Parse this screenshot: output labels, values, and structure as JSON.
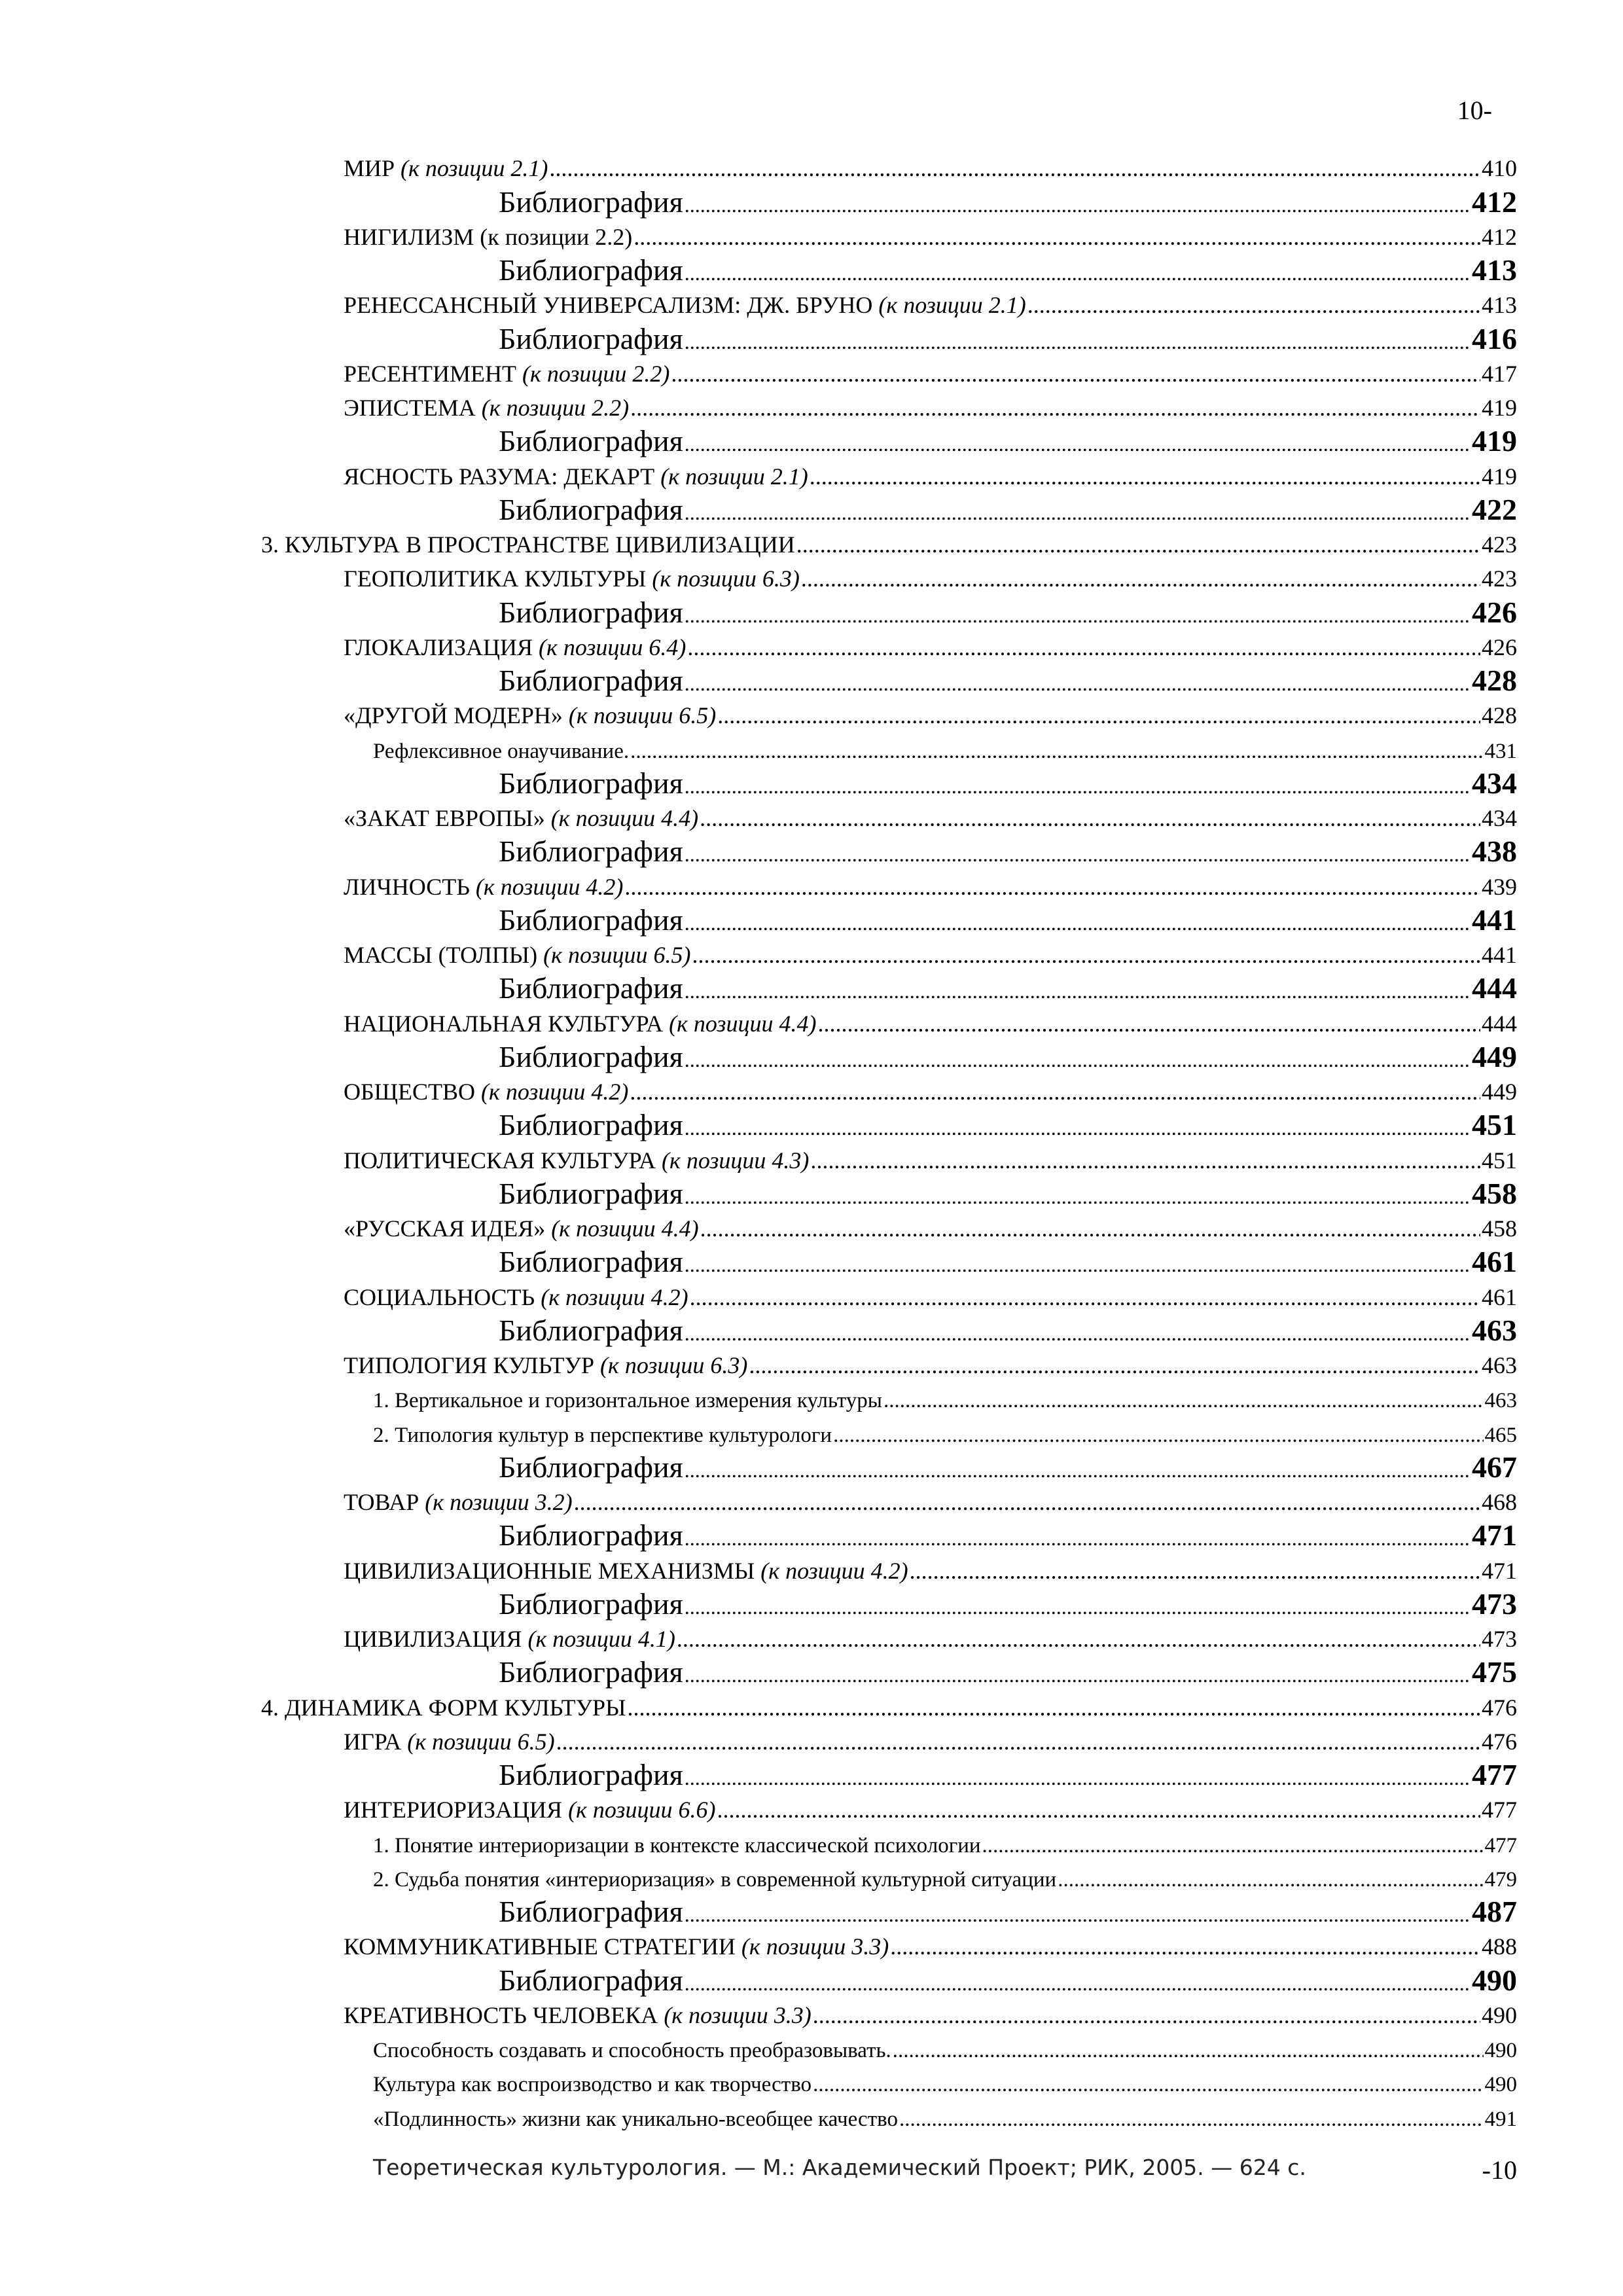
{
  "header": {
    "page_marker": "10-"
  },
  "toc": {
    "bib_label": "Библиография",
    "entries": [
      {
        "level": 1,
        "title": "МИР",
        "ref": "(к позиции 2.1)",
        "ref_italic": true,
        "page": "410"
      },
      {
        "level": "bib",
        "page": "412"
      },
      {
        "level": 1,
        "title": "НИГИЛИЗМ",
        "ref": "(к позиции 2.2)",
        "ref_italic": false,
        "page": "412"
      },
      {
        "level": "bib",
        "page": "413"
      },
      {
        "level": 1,
        "title": "РЕНЕССАНСНЫЙ УНИВЕРСАЛИЗМ: ДЖ. БРУНО",
        "ref": "(к позиции 2.1)",
        "ref_italic": true,
        "page": "413"
      },
      {
        "level": "bib",
        "page": "416"
      },
      {
        "level": 1,
        "title": "РЕСЕНТИМЕНТ",
        "ref": "(к позиции 2.2)",
        "ref_italic": true,
        "page": "417"
      },
      {
        "level": 1,
        "title": "ЭПИСТЕМА",
        "ref": "(к позиции 2.2)",
        "ref_italic": true,
        "page": "419"
      },
      {
        "level": "bib",
        "page": "419"
      },
      {
        "level": 1,
        "title": "ЯСНОСТЬ РАЗУМА: ДЕКАРТ",
        "ref": "(к позиции 2.1)",
        "ref_italic": true,
        "page": "419"
      },
      {
        "level": "bib",
        "page": "422"
      },
      {
        "level": 0,
        "title": "3. КУЛЬТУРА В ПРОСТРАНСТВЕ ЦИВИЛИЗАЦИИ",
        "page": "423"
      },
      {
        "level": 1,
        "title": "ГЕОПОЛИТИКА КУЛЬТУРЫ",
        "ref": "(к позиции 6.3)",
        "ref_italic": true,
        "page": "423"
      },
      {
        "level": "bib",
        "page": "426"
      },
      {
        "level": 1,
        "title": "ГЛОКАЛИЗАЦИЯ",
        "ref": "(к позиции 6.4)",
        "ref_italic": true,
        "page": "426"
      },
      {
        "level": "bib",
        "page": "428"
      },
      {
        "level": 1,
        "title": "«ДРУГОЙ МОДЕРН»",
        "ref": "(к позиции 6.5)",
        "ref_italic": true,
        "page": "428"
      },
      {
        "level": 2,
        "title": "Рефлексивное онаучивание.",
        "page": "431"
      },
      {
        "level": "bib",
        "page": "434"
      },
      {
        "level": 1,
        "title": "«ЗАКАТ ЕВРОПЫ»",
        "ref": "(к позиции 4.4)",
        "ref_italic": true,
        "page": "434"
      },
      {
        "level": "bib",
        "page": "438"
      },
      {
        "level": 1,
        "title": "ЛИЧНОСТЬ",
        "ref": "(к позиции 4.2)",
        "ref_italic": true,
        "page": "439"
      },
      {
        "level": "bib",
        "page": "441"
      },
      {
        "level": 1,
        "title": "МАССЫ (ТОЛПЫ)",
        "ref": "(к позиции 6.5)",
        "ref_italic": true,
        "page": "441"
      },
      {
        "level": "bib",
        "page": "444"
      },
      {
        "level": 1,
        "title": "НАЦИОНАЛЬНАЯ КУЛЬТУРА",
        "ref": "(к позиции 4.4)",
        "ref_italic": true,
        "page": "444"
      },
      {
        "level": "bib",
        "page": "449"
      },
      {
        "level": 1,
        "title": "ОБЩЕСТВО",
        "ref": "(к позиции 4.2)",
        "ref_italic": true,
        "page": "449"
      },
      {
        "level": "bib",
        "page": "451"
      },
      {
        "level": 1,
        "title": "ПОЛИТИЧЕСКАЯ КУЛЬТУРА",
        "ref": "(к позиции 4.3)",
        "ref_italic": true,
        "page": "451"
      },
      {
        "level": "bib",
        "page": "458"
      },
      {
        "level": 1,
        "title": "«РУССКАЯ ИДЕЯ»",
        "ref": "(к позиции 4.4)",
        "ref_italic": true,
        "page": "458"
      },
      {
        "level": "bib",
        "page": "461"
      },
      {
        "level": 1,
        "title": "СОЦИАЛЬНОСТЬ",
        "ref": "(к позиции 4.2)",
        "ref_italic": true,
        "page": "461"
      },
      {
        "level": "bib",
        "page": "463"
      },
      {
        "level": 1,
        "title": "ТИПОЛОГИЯ КУЛЬТУР",
        "ref": "(к позиции 6.3)",
        "ref_italic": true,
        "page": "463"
      },
      {
        "level": 2,
        "title": "1. Вертикальное и горизонтальное измерения культуры",
        "page": "463"
      },
      {
        "level": 2,
        "title": "2. Типология культур в перспективе культурологи",
        "page": "465"
      },
      {
        "level": "bib",
        "page": "467"
      },
      {
        "level": 1,
        "title": "ТОВАР",
        "ref": "(к позиции 3.2)",
        "ref_italic": true,
        "page": "468"
      },
      {
        "level": "bib",
        "page": "471"
      },
      {
        "level": 1,
        "title": "ЦИВИЛИЗАЦИОННЫЕ МЕХАНИЗМЫ",
        "ref": "(к позиции 4.2)",
        "ref_italic": true,
        "page": "471"
      },
      {
        "level": "bib",
        "page": "473"
      },
      {
        "level": 1,
        "title": "ЦИВИЛИЗАЦИЯ",
        "ref": "(к позиции 4.1)",
        "ref_italic": true,
        "page": "473"
      },
      {
        "level": "bib",
        "page": "475"
      },
      {
        "level": 0,
        "title": "4. ДИНАМИКА ФОРМ КУЛЬТУРЫ",
        "page": "476"
      },
      {
        "level": 1,
        "title": "ИГРА",
        "ref": "(к позиции 6.5)",
        "ref_italic": true,
        "page": "476"
      },
      {
        "level": "bib",
        "page": "477"
      },
      {
        "level": 1,
        "title": "ИНТЕРИОРИЗАЦИЯ",
        "ref": "(к позиции 6.6)",
        "ref_italic": true,
        "page": "477"
      },
      {
        "level": 2,
        "title": "1. Понятие интериоризации в контексте классической психологии",
        "page": "477"
      },
      {
        "level": 2,
        "title": "2. Судьба понятия «интериоризация» в современной культурной ситуации",
        "page": "479"
      },
      {
        "level": "bib",
        "page": "487"
      },
      {
        "level": 1,
        "title": "КОММУНИКАТИВНЫЕ СТРАТЕГИИ",
        "ref": "(к позиции 3.3)",
        "ref_italic": true,
        "page": "488"
      },
      {
        "level": "bib",
        "page": "490"
      },
      {
        "level": 1,
        "title": "КРЕАТИВНОСТЬ ЧЕЛОВЕКА",
        "ref": "(к позиции 3.3)",
        "ref_italic": true,
        "page": "490"
      },
      {
        "level": 2,
        "title": "Способность создавать и способность преобразовывать.",
        "page": "490"
      },
      {
        "level": 2,
        "title": "Культура как воспроизводство и как творчество",
        "page": "490"
      },
      {
        "level": 2,
        "title": "«Подлинность» жизни как уникально-всеобщее качество",
        "page": "491"
      }
    ]
  },
  "footer": {
    "citation": "Теоретическая культурология. — М.: Академический Проект; РИК, 2005. — 624 с.",
    "page_marker": "-10"
  }
}
